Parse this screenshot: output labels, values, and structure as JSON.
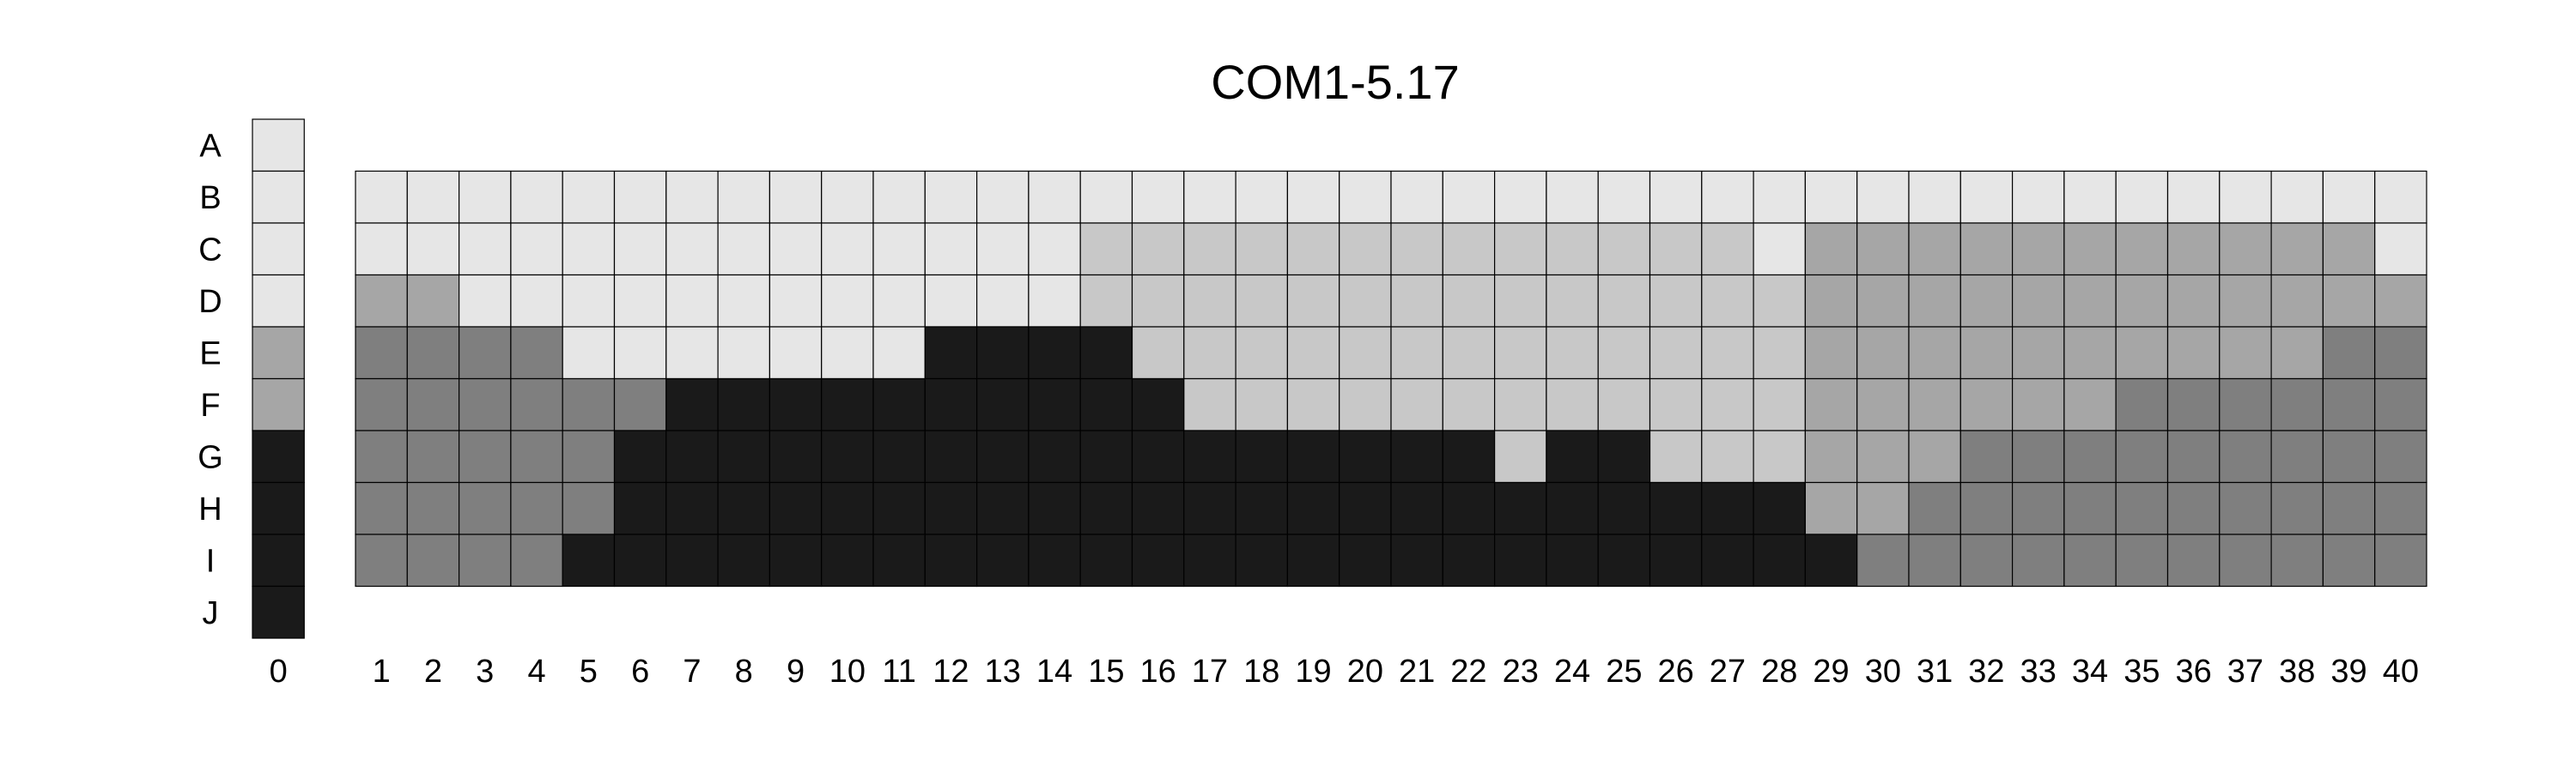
{
  "chart_data": {
    "type": "heatmap",
    "title": "COM1-5.17",
    "rows": [
      "A",
      "B",
      "C",
      "D",
      "E",
      "F",
      "G",
      "H",
      "I",
      "J"
    ],
    "reference_column": {
      "label": "0",
      "values": [
        0,
        0,
        0,
        0,
        1,
        1,
        4,
        4,
        4,
        4
      ]
    },
    "columns": [
      "1",
      "2",
      "3",
      "4",
      "5",
      "6",
      "7",
      "8",
      "9",
      "10",
      "11",
      "12",
      "13",
      "14",
      "15",
      "16",
      "17",
      "18",
      "19",
      "20",
      "21",
      "22",
      "23",
      "24",
      "25",
      "26",
      "27",
      "28",
      "29",
      "30",
      "31",
      "32",
      "33",
      "34",
      "35",
      "36",
      "37",
      "38",
      "39",
      "40"
    ],
    "grid_rows": [
      "B",
      "C",
      "D",
      "E",
      "F",
      "G",
      "H",
      "I"
    ],
    "levels": {
      "0": "#e6e6e6",
      "1": "#a6a6a6",
      "2": "#c8c8c8",
      "3": "#7f7f7f",
      "4": "#1a1a1a"
    },
    "grid_values": [
      [
        0,
        0,
        0,
        0,
        0,
        0,
        0,
        0,
        0,
        0,
        0,
        0,
        0,
        0,
        0,
        0,
        0,
        0,
        0,
        0,
        0,
        0,
        0,
        0,
        0,
        0,
        0,
        0,
        0,
        0,
        0,
        0,
        0,
        0,
        0,
        0,
        0,
        0,
        0,
        0
      ],
      [
        0,
        0,
        0,
        0,
        0,
        0,
        0,
        0,
        0,
        0,
        0,
        0,
        0,
        0,
        2,
        2,
        2,
        2,
        2,
        2,
        2,
        2,
        2,
        2,
        2,
        2,
        2,
        0,
        1,
        1,
        1,
        1,
        1,
        1,
        1,
        1,
        1,
        1,
        1,
        0
      ],
      [
        1,
        1,
        0,
        0,
        0,
        0,
        0,
        0,
        0,
        0,
        0,
        0,
        0,
        0,
        2,
        2,
        2,
        2,
        2,
        2,
        2,
        2,
        2,
        2,
        2,
        2,
        2,
        2,
        1,
        1,
        1,
        1,
        1,
        1,
        1,
        1,
        1,
        1,
        1,
        1
      ],
      [
        3,
        3,
        3,
        3,
        0,
        0,
        0,
        0,
        0,
        0,
        0,
        4,
        4,
        4,
        4,
        2,
        2,
        2,
        2,
        2,
        2,
        2,
        2,
        2,
        2,
        2,
        2,
        2,
        1,
        1,
        1,
        1,
        1,
        1,
        1,
        1,
        1,
        1,
        3,
        3
      ],
      [
        3,
        3,
        3,
        3,
        3,
        3,
        4,
        4,
        4,
        4,
        4,
        4,
        4,
        4,
        4,
        4,
        2,
        2,
        2,
        2,
        2,
        2,
        2,
        2,
        2,
        2,
        2,
        2,
        1,
        1,
        1,
        1,
        1,
        1,
        3,
        3,
        3,
        3,
        3,
        3
      ],
      [
        3,
        3,
        3,
        3,
        3,
        4,
        4,
        4,
        4,
        4,
        4,
        4,
        4,
        4,
        4,
        4,
        4,
        4,
        4,
        4,
        4,
        4,
        2,
        4,
        4,
        2,
        2,
        2,
        1,
        1,
        1,
        3,
        3,
        3,
        3,
        3,
        3,
        3,
        3,
        3
      ],
      [
        3,
        3,
        3,
        3,
        3,
        4,
        4,
        4,
        4,
        4,
        4,
        4,
        4,
        4,
        4,
        4,
        4,
        4,
        4,
        4,
        4,
        4,
        4,
        4,
        4,
        4,
        4,
        4,
        1,
        1,
        3,
        3,
        3,
        3,
        3,
        3,
        3,
        3,
        3,
        3
      ],
      [
        3,
        3,
        3,
        3,
        4,
        4,
        4,
        4,
        4,
        4,
        4,
        4,
        4,
        4,
        4,
        4,
        4,
        4,
        4,
        4,
        4,
        4,
        4,
        4,
        4,
        4,
        4,
        4,
        4,
        3,
        3,
        3,
        3,
        3,
        3,
        3,
        3,
        3,
        3,
        3
      ]
    ]
  }
}
